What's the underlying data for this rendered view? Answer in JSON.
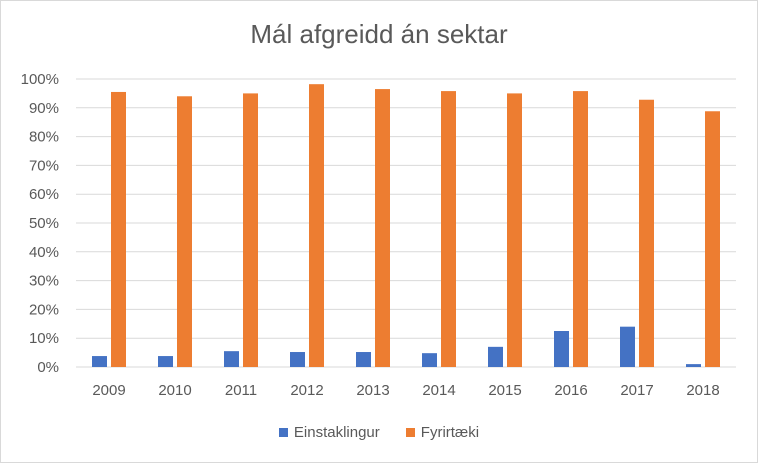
{
  "chart_data": {
    "type": "bar",
    "title": "Mál afgreidd án sektar",
    "xlabel": "",
    "ylabel": "",
    "categories": [
      "2009",
      "2010",
      "2011",
      "2012",
      "2013",
      "2014",
      "2015",
      "2016",
      "2017",
      "2018"
    ],
    "series": [
      {
        "name": "Einstaklingur",
        "color": "#4472c4",
        "values": [
          3.8,
          3.8,
          5.5,
          5.2,
          5.2,
          4.8,
          7.0,
          12.5,
          14.0,
          1.0
        ]
      },
      {
        "name": "Fyrirtæki",
        "color": "#ed7d31",
        "values": [
          95.5,
          94.0,
          95.0,
          98.2,
          96.5,
          95.8,
          95.0,
          95.8,
          92.8,
          88.8
        ]
      }
    ],
    "ylim": [
      0,
      100
    ],
    "yticks": [
      "0%",
      "10%",
      "20%",
      "30%",
      "40%",
      "50%",
      "60%",
      "70%",
      "80%",
      "90%",
      "100%"
    ],
    "grid": true,
    "legend_position": "bottom"
  }
}
